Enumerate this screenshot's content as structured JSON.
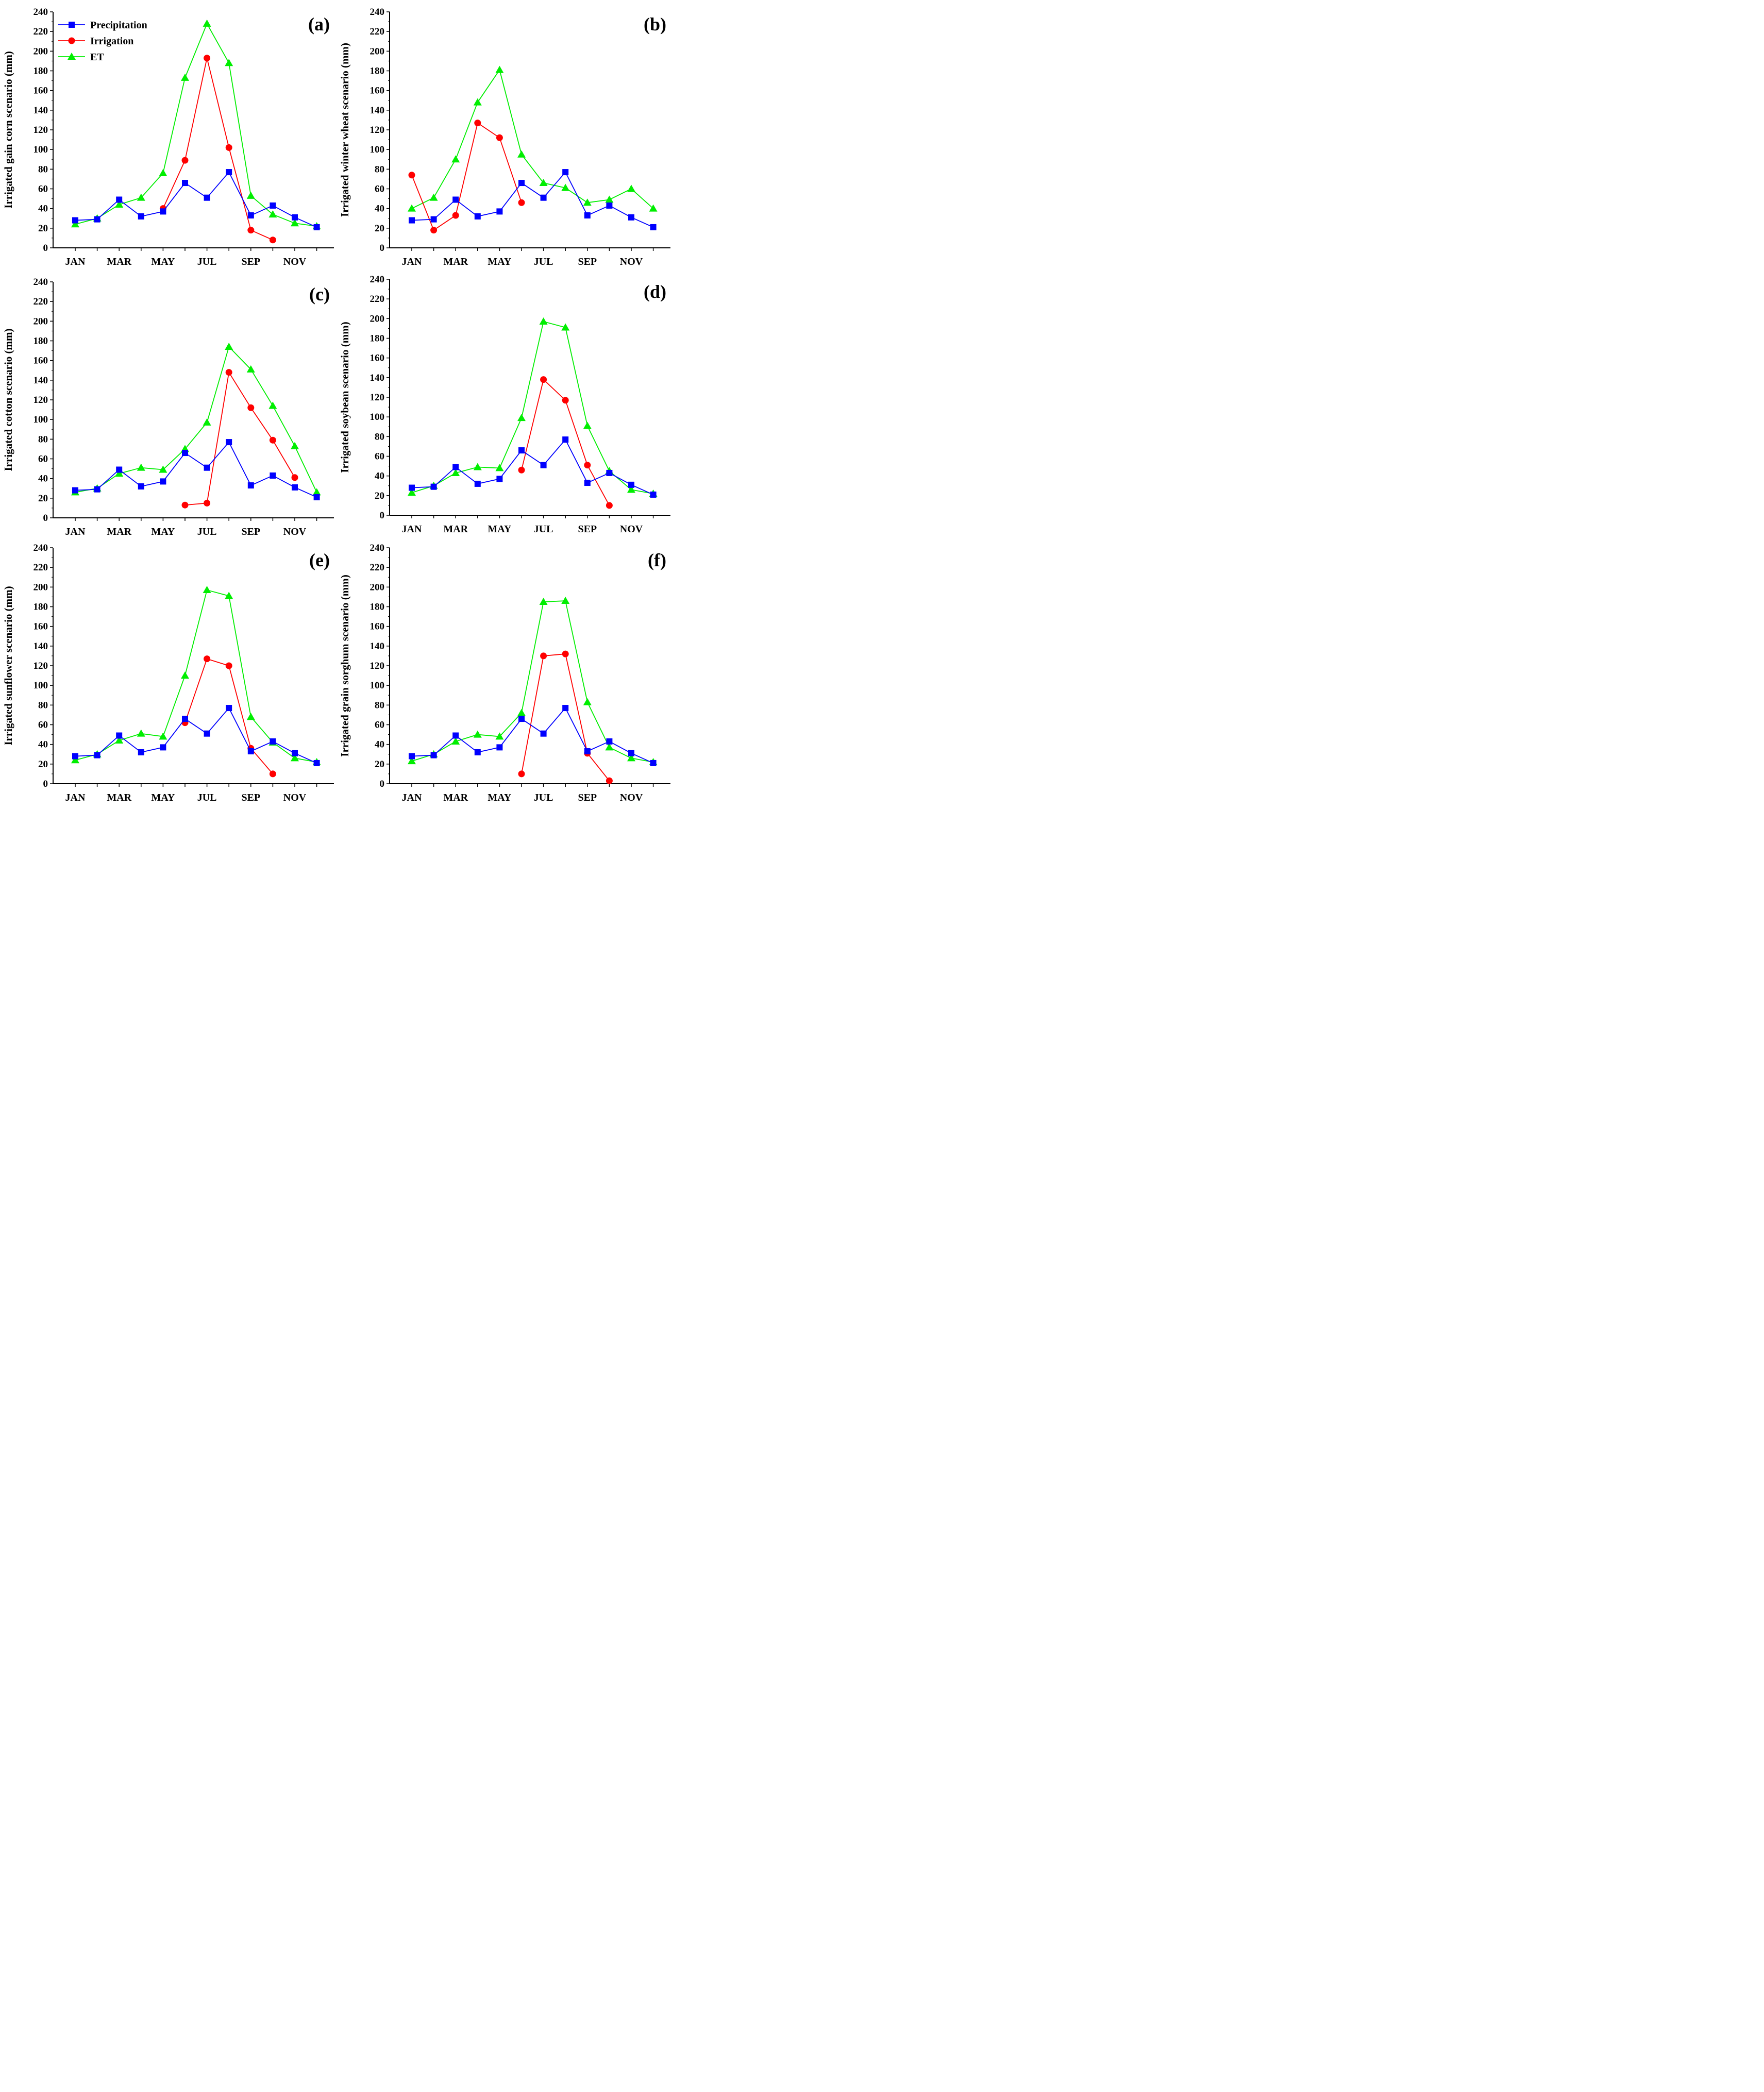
{
  "figure": {
    "colors": {
      "Precipitation": "#0000ff",
      "Irrigation": "#ff0000",
      "ET": "#00ee00"
    },
    "markers": {
      "Precipitation": "square",
      "Irrigation": "circle",
      "ET": "triangle"
    },
    "legend": {
      "placement": "top-left of panel (a)",
      "entries": [
        "Precipitation",
        "Irrigation",
        "ET"
      ]
    }
  },
  "chart_data": [
    {
      "type": "line",
      "panel_label": "(a)",
      "ylabel": "Irrigated gain corn scenario (mm)",
      "xlabel": "",
      "x": [
        1,
        2,
        3,
        4,
        5,
        6,
        7,
        8,
        9,
        10,
        11,
        12
      ],
      "xticklabels": [
        "JAN",
        "MAR",
        "MAY",
        "JUL",
        "SEP",
        "NOV"
      ],
      "xtick_months": [
        1,
        3,
        5,
        7,
        9,
        11
      ],
      "ylim": [
        0,
        240
      ],
      "yticks": [
        0,
        20,
        40,
        60,
        80,
        100,
        120,
        140,
        160,
        180,
        200,
        220,
        240
      ],
      "grid": false,
      "series": [
        {
          "name": "Precipitation",
          "values": [
            28,
            29,
            49,
            32,
            37,
            66,
            51,
            77,
            33,
            43,
            31,
            21
          ]
        },
        {
          "name": "Irrigation",
          "values": [
            null,
            null,
            null,
            null,
            40,
            89,
            193,
            102,
            18,
            8,
            null,
            null
          ]
        },
        {
          "name": "ET",
          "values": [
            24,
            30,
            44,
            51,
            76,
            173,
            228,
            188,
            53,
            34,
            25,
            22
          ]
        }
      ]
    },
    {
      "type": "line",
      "panel_label": "(b)",
      "ylabel": "Irrigated winter wheat scenario (mm)",
      "xlabel": "",
      "x": [
        1,
        2,
        3,
        4,
        5,
        6,
        7,
        8,
        9,
        10,
        11,
        12
      ],
      "xticklabels": [
        "JAN",
        "MAR",
        "MAY",
        "JUL",
        "SEP",
        "NOV"
      ],
      "xtick_months": [
        1,
        3,
        5,
        7,
        9,
        11
      ],
      "ylim": [
        0,
        240
      ],
      "yticks": [
        0,
        20,
        40,
        60,
        80,
        100,
        120,
        140,
        160,
        180,
        200,
        220,
        240
      ],
      "grid": false,
      "series": [
        {
          "name": "Precipitation",
          "values": [
            28,
            29,
            49,
            32,
            37,
            66,
            51,
            77,
            33,
            43,
            31,
            21
          ]
        },
        {
          "name": "Irrigation",
          "values": [
            74,
            18,
            33,
            127,
            112,
            46,
            null,
            null,
            null,
            null,
            null,
            null
          ]
        },
        {
          "name": "ET",
          "values": [
            40,
            51,
            90,
            148,
            181,
            95,
            66,
            61,
            46,
            49,
            60,
            40
          ]
        }
      ]
    },
    {
      "type": "line",
      "panel_label": "(c)",
      "ylabel": "Irrigated cotton scenario (mm)",
      "xlabel": "",
      "x": [
        1,
        2,
        3,
        4,
        5,
        6,
        7,
        8,
        9,
        10,
        11,
        12
      ],
      "xticklabels": [
        "JAN",
        "MAR",
        "MAY",
        "JUL",
        "SEP",
        "NOV"
      ],
      "xtick_months": [
        1,
        3,
        5,
        7,
        9,
        11
      ],
      "ylim": [
        0,
        240
      ],
      "yticks": [
        0,
        20,
        40,
        60,
        80,
        100,
        120,
        140,
        160,
        180,
        200,
        220,
        240
      ],
      "grid": false,
      "series": [
        {
          "name": "Precipitation",
          "values": [
            28,
            29,
            49,
            32,
            37,
            66,
            51,
            77,
            33,
            43,
            31,
            21
          ]
        },
        {
          "name": "Irrigation",
          "values": [
            null,
            null,
            null,
            null,
            null,
            13,
            15,
            148,
            112,
            79,
            41,
            null
          ]
        },
        {
          "name": "ET",
          "values": [
            26,
            30,
            45,
            51,
            49,
            70,
            97,
            174,
            151,
            114,
            73,
            26
          ]
        }
      ]
    },
    {
      "type": "line",
      "panel_label": "(d)",
      "ylabel": "Irrigated soybean scenario (mm)",
      "xlabel": "",
      "x": [
        1,
        2,
        3,
        4,
        5,
        6,
        7,
        8,
        9,
        10,
        11,
        12
      ],
      "xticklabels": [
        "JAN",
        "MAR",
        "MAY",
        "JUL",
        "SEP",
        "NOV"
      ],
      "xtick_months": [
        1,
        3,
        5,
        7,
        9,
        11
      ],
      "ylim": [
        0,
        240
      ],
      "yticks": [
        0,
        20,
        40,
        60,
        80,
        100,
        120,
        140,
        160,
        180,
        200,
        220,
        240
      ],
      "grid": false,
      "series": [
        {
          "name": "Precipitation",
          "values": [
            28,
            29,
            49,
            32,
            37,
            66,
            51,
            77,
            33,
            43,
            31,
            21
          ]
        },
        {
          "name": "Irrigation",
          "values": [
            null,
            null,
            null,
            null,
            null,
            46,
            138,
            117,
            51,
            10,
            null,
            null
          ]
        },
        {
          "name": "ET",
          "values": [
            23,
            30,
            43,
            49,
            48,
            99,
            197,
            191,
            91,
            45,
            26,
            22
          ]
        }
      ]
    },
    {
      "type": "line",
      "panel_label": "(e)",
      "ylabel": "Irrigated sunflower scenario (mm)",
      "xlabel": "",
      "x": [
        1,
        2,
        3,
        4,
        5,
        6,
        7,
        8,
        9,
        10,
        11,
        12
      ],
      "xticklabels": [
        "JAN",
        "MAR",
        "MAY",
        "JUL",
        "SEP",
        "NOV"
      ],
      "xtick_months": [
        1,
        3,
        5,
        7,
        9,
        11
      ],
      "ylim": [
        0,
        240
      ],
      "yticks": [
        0,
        20,
        40,
        60,
        80,
        100,
        120,
        140,
        160,
        180,
        200,
        220,
        240
      ],
      "grid": false,
      "series": [
        {
          "name": "Precipitation",
          "values": [
            28,
            29,
            49,
            32,
            37,
            66,
            51,
            77,
            33,
            43,
            31,
            21
          ]
        },
        {
          "name": "Irrigation",
          "values": [
            null,
            null,
            null,
            null,
            null,
            62,
            127,
            120,
            36,
            10,
            null,
            null
          ]
        },
        {
          "name": "ET",
          "values": [
            24,
            30,
            44,
            51,
            48,
            110,
            197,
            191,
            68,
            42,
            26,
            22
          ]
        }
      ]
    },
    {
      "type": "line",
      "panel_label": "(f)",
      "ylabel": "Irrigated grain sorghum scenario (mm)",
      "xlabel": "",
      "x": [
        1,
        2,
        3,
        4,
        5,
        6,
        7,
        8,
        9,
        10,
        11,
        12
      ],
      "xticklabels": [
        "JAN",
        "MAR",
        "MAY",
        "JUL",
        "SEP",
        "NOV"
      ],
      "xtick_months": [
        1,
        3,
        5,
        7,
        9,
        11
      ],
      "ylim": [
        0,
        240
      ],
      "yticks": [
        0,
        20,
        40,
        60,
        80,
        100,
        120,
        140,
        160,
        180,
        200,
        220,
        240
      ],
      "grid": false,
      "series": [
        {
          "name": "Precipitation",
          "values": [
            28,
            29,
            49,
            32,
            37,
            66,
            51,
            77,
            33,
            43,
            31,
            21
          ]
        },
        {
          "name": "Irrigation",
          "values": [
            null,
            null,
            null,
            null,
            null,
            10,
            130,
            132,
            31,
            3,
            null,
            null
          ]
        },
        {
          "name": "ET",
          "values": [
            23,
            30,
            43,
            50,
            48,
            72,
            185,
            186,
            83,
            37,
            26,
            22
          ]
        }
      ]
    }
  ]
}
